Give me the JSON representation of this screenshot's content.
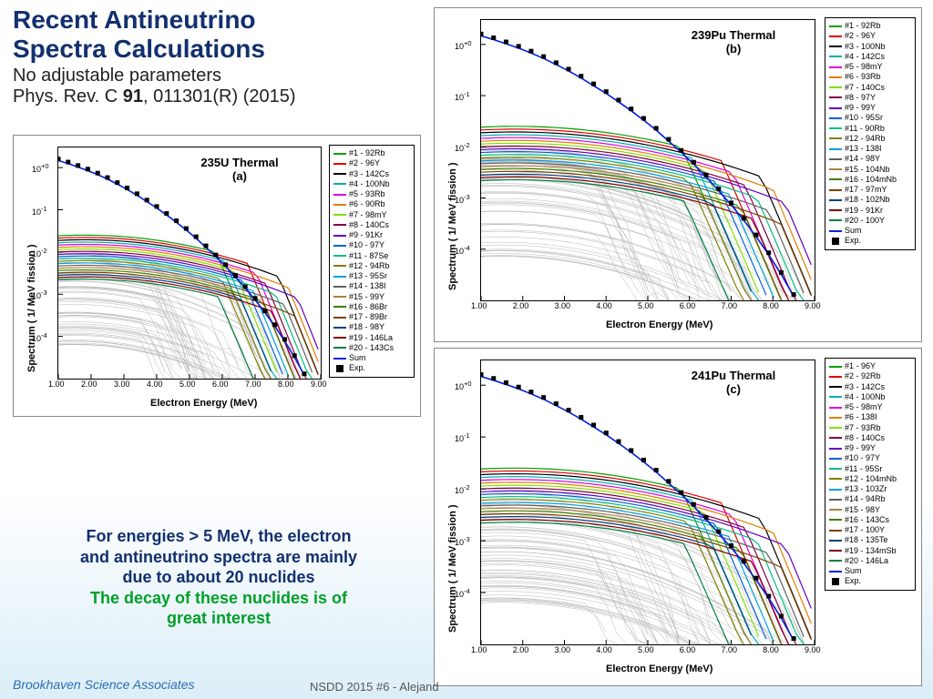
{
  "header": {
    "title_line1": "Recent Antineutrino",
    "title_line2": "Spectra Calculations",
    "title_color": "#12306e",
    "subtitle1": "No adjustable parameters",
    "subtitle2_pre": "Phys. Rev. C ",
    "subtitle2_bold": "91",
    "subtitle2_post": ", 011301(R) (2015)"
  },
  "axes": {
    "ylabel": "Spectrum ( 1/ MeV fission )",
    "xlabel": "Electron Energy (MeV)",
    "xlim": [
      1.0,
      9.0
    ],
    "xticks": [
      "1.00",
      "2.00",
      "3.00",
      "4.00",
      "5.00",
      "6.00",
      "7.00",
      "8.00",
      "9.00"
    ],
    "yscale": "log",
    "ylim": [
      1e-05,
      3
    ],
    "ytick_exp": [
      0,
      -1,
      -2,
      -3,
      -4
    ],
    "grid_color": "#d0d0d0",
    "label_fontsize": 11,
    "tick_fontsize": 9
  },
  "exp_curve": {
    "marker": "square",
    "color": "#000000",
    "size": 5,
    "x": [
      1.0,
      1.3,
      1.6,
      1.9,
      2.2,
      2.5,
      2.8,
      3.1,
      3.4,
      3.7,
      4.0,
      4.3,
      4.6,
      4.9,
      5.2,
      5.5,
      5.8,
      6.1,
      6.4,
      6.7,
      7.0,
      7.3,
      7.6,
      7.9,
      8.2,
      8.5
    ],
    "y": [
      1.6,
      1.35,
      1.12,
      0.92,
      0.74,
      0.58,
      0.44,
      0.33,
      0.24,
      0.17,
      0.12,
      0.082,
      0.055,
      0.036,
      0.023,
      0.014,
      0.0085,
      0.005,
      0.0028,
      0.0015,
      0.0008,
      0.0004,
      0.00019,
      8.5e-05,
      3.5e-05,
      1.3e-05
    ]
  },
  "sum_curve": {
    "color": "#0020e0",
    "width": 1.6
  },
  "gray_curves": {
    "color": "#b8b8b8",
    "count": 60,
    "width": 0.5
  },
  "colored_width": 1.2,
  "charts": {
    "a": {
      "title": "235U Thermal",
      "panel": "(a)",
      "legend": [
        {
          "c": "#00a000",
          "t": "#1 - 92Rb"
        },
        {
          "c": "#e00000",
          "t": "#2 - 96Y"
        },
        {
          "c": "#000000",
          "t": "#3 - 142Cs"
        },
        {
          "c": "#00b0b0",
          "t": "#4 - 100Nb"
        },
        {
          "c": "#e000e0",
          "t": "#5 - 93Rb"
        },
        {
          "c": "#e08000",
          "t": "#6 - 90Rb"
        },
        {
          "c": "#80e000",
          "t": "#7 - 98mY"
        },
        {
          "c": "#800040",
          "t": "#8 - 140Cs"
        },
        {
          "c": "#6000c0",
          "t": "#9 - 91Kr"
        },
        {
          "c": "#0060e0",
          "t": "#10 - 97Y"
        },
        {
          "c": "#00c080",
          "t": "#11 - 87Se"
        },
        {
          "c": "#808000",
          "t": "#12 - 94Rb"
        },
        {
          "c": "#00a0e0",
          "t": "#13 - 95Sr"
        },
        {
          "c": "#606060",
          "t": "#14 - 138I"
        },
        {
          "c": "#b08040",
          "t": "#15 - 99Y"
        },
        {
          "c": "#408000",
          "t": "#16 - 86Br"
        },
        {
          "c": "#804000",
          "t": "#17 - 89Br"
        },
        {
          "c": "#004080",
          "t": "#18 - 98Y"
        },
        {
          "c": "#800000",
          "t": "#19 - 146La"
        },
        {
          "c": "#008040",
          "t": "#20 - 143Cs"
        }
      ]
    },
    "b": {
      "title": "239Pu Thermal",
      "panel": "(b)",
      "legend": [
        {
          "c": "#00a000",
          "t": "#1 - 92Rb"
        },
        {
          "c": "#e00000",
          "t": "#2 - 96Y"
        },
        {
          "c": "#000000",
          "t": "#3 - 100Nb"
        },
        {
          "c": "#00b0b0",
          "t": "#4 - 142Cs"
        },
        {
          "c": "#e000e0",
          "t": "#5 - 98mY"
        },
        {
          "c": "#e08000",
          "t": "#6 - 93Rb"
        },
        {
          "c": "#80e000",
          "t": "#7 - 140Cs"
        },
        {
          "c": "#800040",
          "t": "#8 - 97Y"
        },
        {
          "c": "#6000c0",
          "t": "#9 - 99Y"
        },
        {
          "c": "#0060e0",
          "t": "#10 - 95Sr"
        },
        {
          "c": "#00c080",
          "t": "#11 - 90Rb"
        },
        {
          "c": "#808000",
          "t": "#12 - 94Rb"
        },
        {
          "c": "#00a0e0",
          "t": "#13 - 138I"
        },
        {
          "c": "#606060",
          "t": "#14 - 98Y"
        },
        {
          "c": "#b08040",
          "t": "#15 - 104Nb"
        },
        {
          "c": "#408000",
          "t": "#16 - 104mNb"
        },
        {
          "c": "#804000",
          "t": "#17 - 97mY"
        },
        {
          "c": "#004080",
          "t": "#18 - 102Nb"
        },
        {
          "c": "#800000",
          "t": "#19 - 91Kr"
        },
        {
          "c": "#008040",
          "t": "#20 - 100Y"
        }
      ]
    },
    "c": {
      "title": "241Pu Thermal",
      "panel": "(c)",
      "legend": [
        {
          "c": "#00a000",
          "t": "#1 - 96Y"
        },
        {
          "c": "#e00000",
          "t": "#2 - 92Rb"
        },
        {
          "c": "#000000",
          "t": "#3 - 142Cs"
        },
        {
          "c": "#00b0b0",
          "t": "#4 - 100Nb"
        },
        {
          "c": "#e000e0",
          "t": "#5 - 98mY"
        },
        {
          "c": "#e08000",
          "t": "#6 - 138I"
        },
        {
          "c": "#80e000",
          "t": "#7 - 93Rb"
        },
        {
          "c": "#800040",
          "t": "#8 - 140Cs"
        },
        {
          "c": "#6000c0",
          "t": "#9 - 99Y"
        },
        {
          "c": "#0060e0",
          "t": "#10 - 97Y"
        },
        {
          "c": "#00c080",
          "t": "#11 - 95Sr"
        },
        {
          "c": "#808000",
          "t": "#12 - 104mNb"
        },
        {
          "c": "#00a0e0",
          "t": "#13 - 103Zr"
        },
        {
          "c": "#606060",
          "t": "#14 - 94Rb"
        },
        {
          "c": "#b08040",
          "t": "#15 - 98Y"
        },
        {
          "c": "#408000",
          "t": "#16 - 143Cs"
        },
        {
          "c": "#804000",
          "t": "#17 - 100Y"
        },
        {
          "c": "#004080",
          "t": "#18 - 135Te"
        },
        {
          "c": "#800000",
          "t": "#19 - 134mSb"
        },
        {
          "c": "#008040",
          "t": "#20 - 146La"
        }
      ]
    }
  },
  "note": {
    "line1": "For energies > 5 MeV, the electron",
    "line2": "and antineutrino spectra are mainly",
    "line3": "due to about 20 nuclides",
    "line4": "The decay of these nuclides is of",
    "line5": "great interest",
    "color_main": "#12306e",
    "color_emph": "#00a028"
  },
  "footer": {
    "left": "Brookhaven Science Associates",
    "mid": "NSDD 2015 #6  -  Alejand"
  }
}
